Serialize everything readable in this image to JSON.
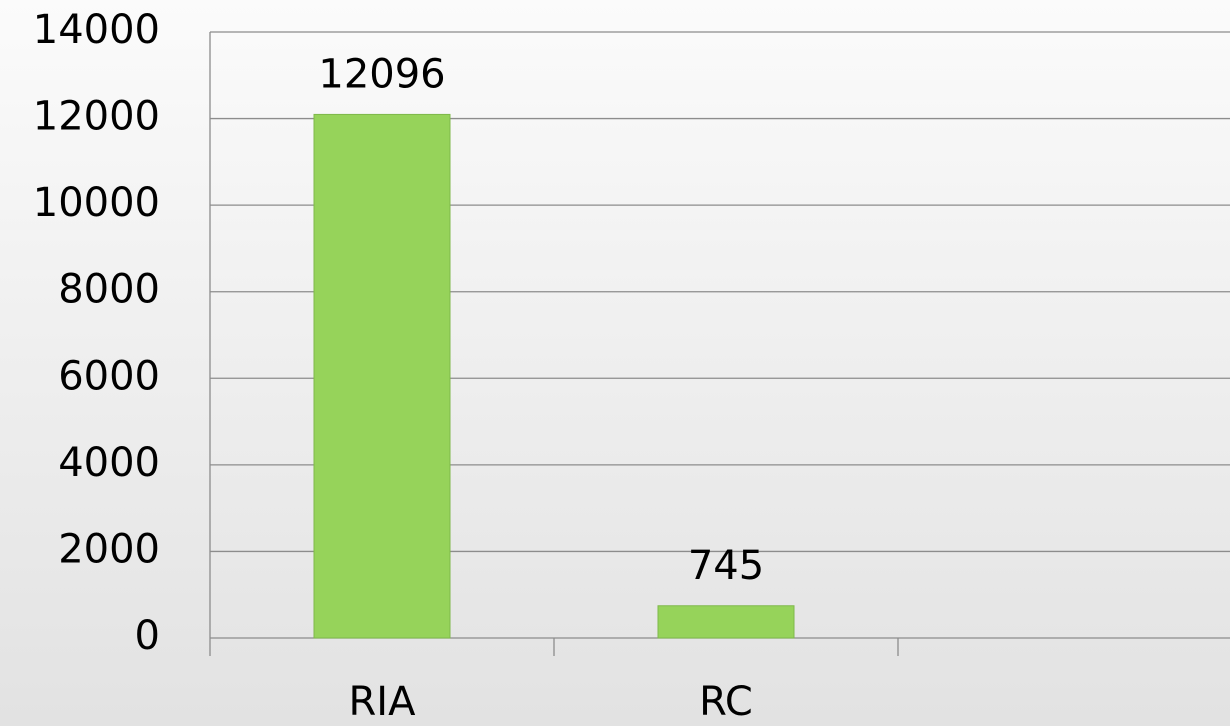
{
  "chart_data": {
    "type": "bar",
    "categories": [
      "RIA",
      "RC",
      null
    ],
    "values": [
      12096,
      745,
      null
    ],
    "color": "#96d35a",
    "ylim": [
      0,
      14000
    ],
    "yticks": [
      0,
      2000,
      4000,
      6000,
      8000,
      10000,
      12000,
      14000
    ],
    "grid": true
  }
}
